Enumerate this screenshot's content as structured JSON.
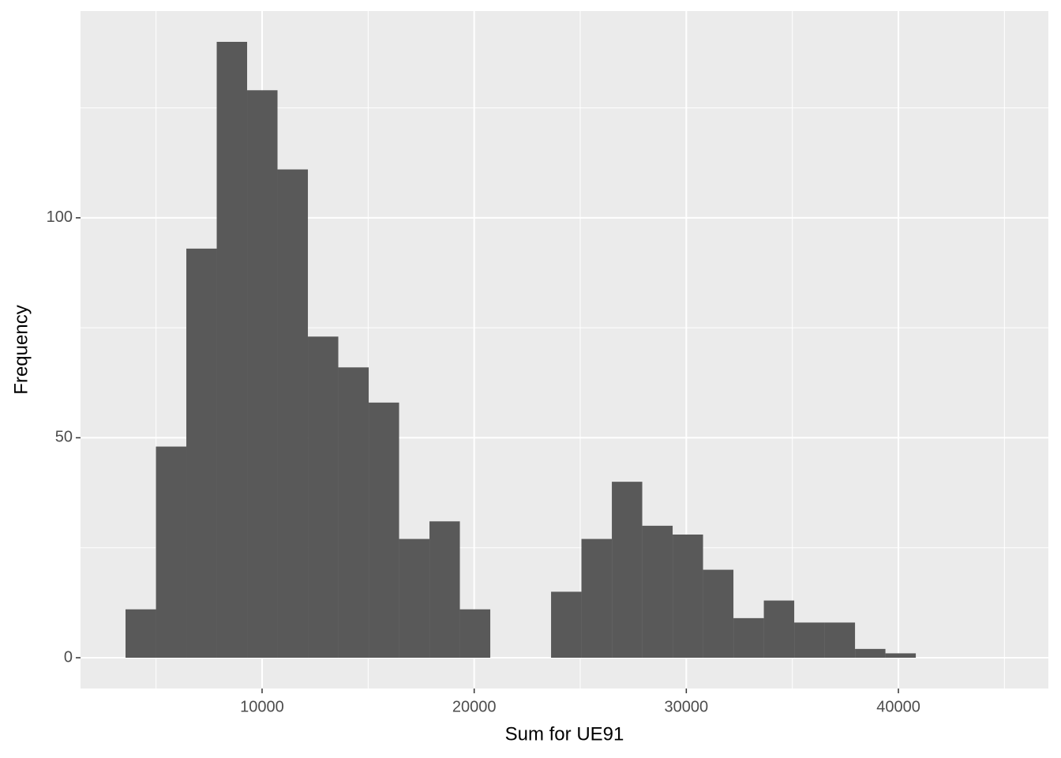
{
  "chart_data": {
    "type": "histogram",
    "x_label": "Sum for UE91",
    "y_label": "Frequency",
    "bins": [
      3562,
      4995,
      6428,
      7861,
      9294,
      10727,
      12160,
      13593,
      15026,
      16459,
      17892,
      19325,
      20758,
      22191,
      23624,
      25057,
      26490,
      27923,
      29356,
      30789,
      32222,
      33655,
      35088,
      36521,
      37954,
      39387,
      40820
    ],
    "values": [
      11,
      48,
      93,
      140,
      129,
      111,
      73,
      66,
      58,
      27,
      31,
      11,
      0,
      0,
      15,
      27,
      40,
      30,
      28,
      20,
      9,
      13,
      8,
      8,
      2,
      1
    ],
    "color": "#595959",
    "xlim": [
      1440,
      47070
    ],
    "xticks": [
      10000,
      20000,
      30000,
      40000
    ],
    "ylim": [
      -7,
      147
    ],
    "yticks": [
      0,
      50,
      100
    ],
    "grid": true
  }
}
